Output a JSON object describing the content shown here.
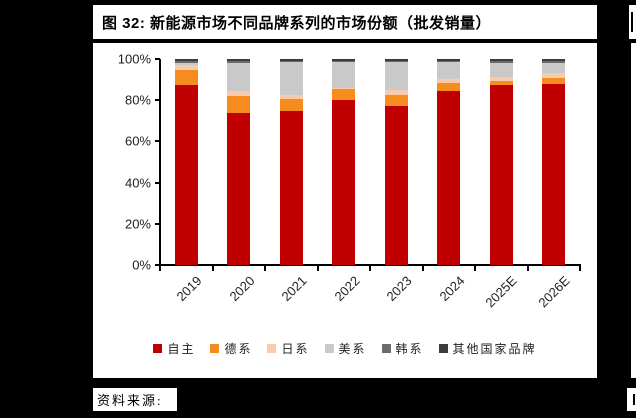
{
  "figure": {
    "title": "图 32: 新能源市场不同品牌系列的市场份额（批发销量）",
    "source_label": "资料来源:"
  },
  "chart_data": {
    "type": "bar",
    "subtype": "stacked-100-percent",
    "categories": [
      "2019",
      "2020",
      "2021",
      "2022",
      "2023",
      "2024",
      "2025E",
      "2026E"
    ],
    "series": [
      {
        "name": "自主",
        "color": "#C00000",
        "values": [
          87.5,
          74,
          75,
          80,
          77,
          84.5,
          87.5,
          88
        ]
      },
      {
        "name": "德系",
        "color": "#F68B1E",
        "values": [
          7,
          8,
          5.5,
          5.5,
          5.5,
          4,
          2,
          3
        ]
      },
      {
        "name": "日系",
        "color": "#F8CBAD",
        "values": [
          2.5,
          2.5,
          2,
          0.5,
          2.5,
          2,
          2,
          2
        ]
      },
      {
        "name": "美系",
        "color": "#C9C9C9",
        "values": [
          1,
          13.5,
          16,
          12.5,
          13.5,
          8,
          6.5,
          5
        ]
      },
      {
        "name": "韩系",
        "color": "#6B6B6B",
        "values": [
          1,
          1,
          0.5,
          0.5,
          0.5,
          0.5,
          1,
          1
        ]
      },
      {
        "name": "其他国家品牌",
        "color": "#3B3B3B",
        "values": [
          1,
          1,
          1,
          1,
          1,
          1,
          1,
          1
        ]
      }
    ],
    "title": "",
    "xlabel": "",
    "ylabel": "",
    "ylim": [
      0,
      100
    ],
    "yticks": [
      "0%",
      "20%",
      "40%",
      "60%",
      "80%",
      "100%"
    ],
    "grid": false,
    "legend_position": "bottom"
  }
}
